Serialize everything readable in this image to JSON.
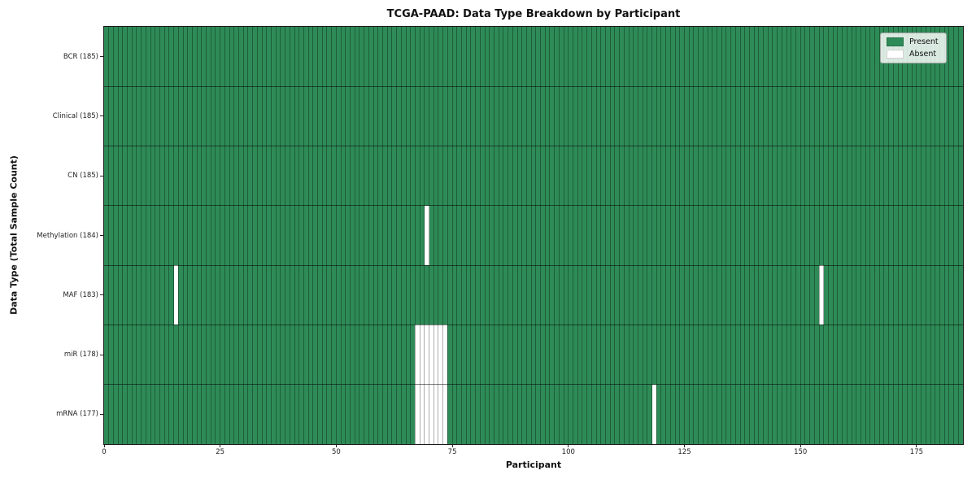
{
  "figure": {
    "background": "#ffffff"
  },
  "chart_data": {
    "type": "heatmap",
    "title": "TCGA-PAAD: Data Type Breakdown by Participant",
    "xlabel": "Participant",
    "ylabel": "Data Type (Total Sample Count)",
    "n_participants": 185,
    "xlim": [
      0,
      185
    ],
    "x_ticks": [
      0,
      25,
      50,
      75,
      100,
      125,
      150,
      175
    ],
    "grid": true,
    "legend_position": "upper right",
    "colors": {
      "present": "#2e8b57",
      "absent": "#ffffff",
      "vertical_gridline": "rgba(0,0,0,0.33)",
      "horizontal_gridline": "rgba(0,0,0,0.52)"
    },
    "legend": {
      "entries": [
        {
          "label": "Present",
          "color": "#2e8b57"
        },
        {
          "label": "Absent",
          "color": "#ffffff"
        }
      ]
    },
    "rows": [
      {
        "label": "BCR",
        "total": 185,
        "tick_label": "BCR (185)",
        "absent_participants": []
      },
      {
        "label": "Clinical",
        "total": 185,
        "tick_label": "Clinical (185)",
        "absent_participants": []
      },
      {
        "label": "CN",
        "total": 185,
        "tick_label": "CN (185)",
        "absent_participants": []
      },
      {
        "label": "Methylation",
        "total": 184,
        "tick_label": "Methylation (184)",
        "absent_participants": [
          69
        ]
      },
      {
        "label": "MAF",
        "total": 183,
        "tick_label": "MAF (183)",
        "absent_participants": [
          15,
          154
        ]
      },
      {
        "label": "miR",
        "total": 178,
        "tick_label": "miR (178)",
        "absent_participants": [
          67,
          68,
          69,
          70,
          71,
          72,
          73
        ]
      },
      {
        "label": "mRNA",
        "total": 177,
        "tick_label": "mRNA (177)",
        "absent_participants": [
          67,
          68,
          69,
          70,
          71,
          72,
          73,
          118
        ]
      }
    ]
  }
}
